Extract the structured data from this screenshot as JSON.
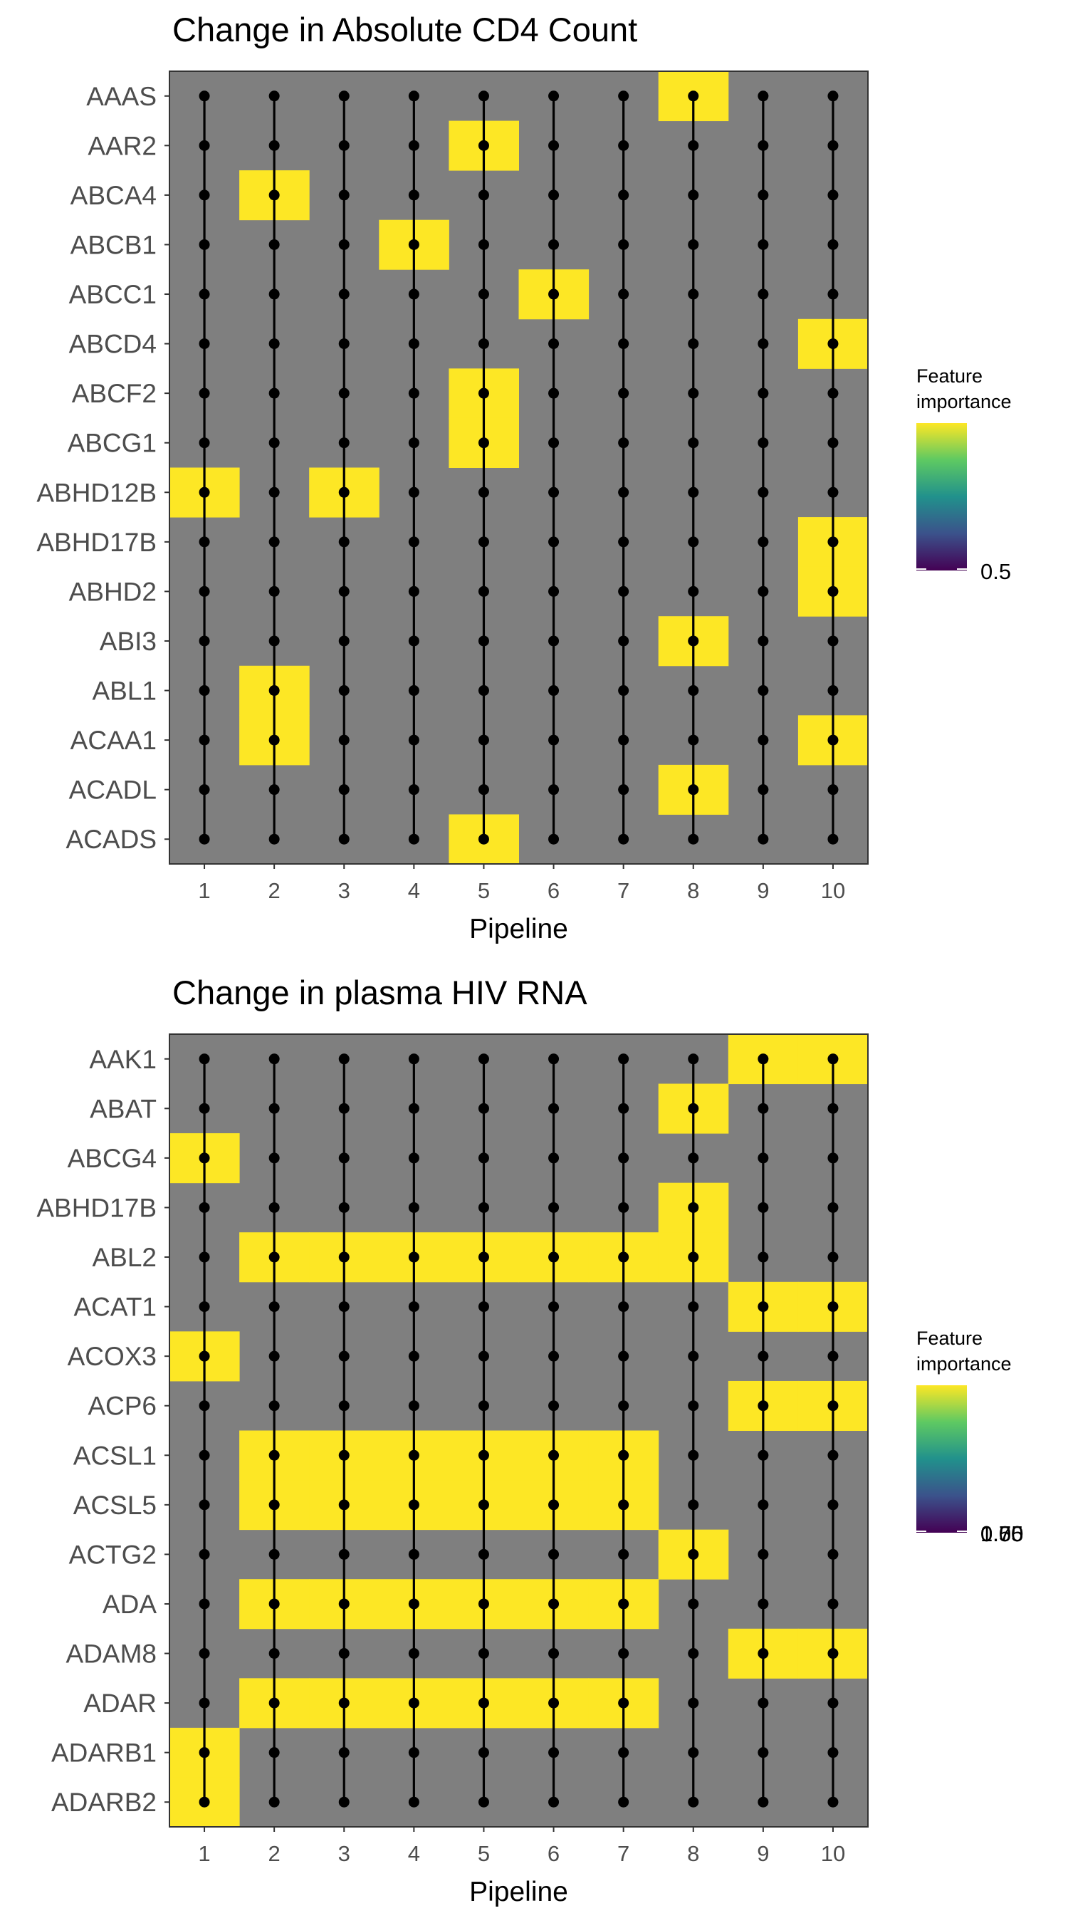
{
  "chart_data": [
    {
      "type": "heatmap",
      "title": "Change in Absolute CD4 Count",
      "xlabel": "Pipeline",
      "x": [
        "1",
        "2",
        "3",
        "4",
        "5",
        "6",
        "7",
        "8",
        "9",
        "10"
      ],
      "y": [
        "AAAS",
        "AAR2",
        "ABCA4",
        "ABCB1",
        "ABCC1",
        "ABCD4",
        "ABCF2",
        "ABCG1",
        "ABHD12B",
        "ABHD17B",
        "ABHD2",
        "ABI3",
        "ABL1",
        "ACAA1",
        "ACADL",
        "ACADS"
      ],
      "highlighted_cells": [
        [
          "AAAS",
          "8"
        ],
        [
          "AAR2",
          "5"
        ],
        [
          "ABCA4",
          "2"
        ],
        [
          "ABCB1",
          "4"
        ],
        [
          "ABCC1",
          "6"
        ],
        [
          "ABCD4",
          "10"
        ],
        [
          "ABCF2",
          "5"
        ],
        [
          "ABCG1",
          "5"
        ],
        [
          "ABHD12B",
          "1"
        ],
        [
          "ABHD12B",
          "3"
        ],
        [
          "ABHD17B",
          "10"
        ],
        [
          "ABHD2",
          "10"
        ],
        [
          "ABI3",
          "8"
        ],
        [
          "ABL1",
          "2"
        ],
        [
          "ACAA1",
          "2"
        ],
        [
          "ACAA1",
          "10"
        ],
        [
          "ACADL",
          "8"
        ],
        [
          "ACADS",
          "5"
        ]
      ],
      "highlight_color": "#fde725",
      "background_color": "#7f7f7f",
      "legend": {
        "title": "Feature importance",
        "title_lines": [
          "Feature",
          "importance"
        ],
        "tick_labels": [
          "0.5"
        ],
        "colors": [
          "#440154",
          "#3b528b",
          "#21918c",
          "#5ec962",
          "#fde725"
        ],
        "placement": "right"
      }
    },
    {
      "type": "heatmap",
      "title": "Change in plasma HIV RNA",
      "xlabel": "Pipeline",
      "x": [
        "1",
        "2",
        "3",
        "4",
        "5",
        "6",
        "7",
        "8",
        "9",
        "10"
      ],
      "y": [
        "AAK1",
        "ABAT",
        "ABCG4",
        "ABHD17B",
        "ABL2",
        "ACAT1",
        "ACOX3",
        "ACP6",
        "ACSL1",
        "ACSL5",
        "ACTG2",
        "ADA",
        "ADAM8",
        "ADAR",
        "ADARB1",
        "ADARB2"
      ],
      "highlighted_cells": [
        [
          "AAK1",
          "9"
        ],
        [
          "AAK1",
          "10"
        ],
        [
          "ABAT",
          "8"
        ],
        [
          "ABCG4",
          "1"
        ],
        [
          "ABHD17B",
          "8"
        ],
        [
          "ABL2",
          "2"
        ],
        [
          "ABL2",
          "3"
        ],
        [
          "ABL2",
          "4"
        ],
        [
          "ABL2",
          "5"
        ],
        [
          "ABL2",
          "6"
        ],
        [
          "ABL2",
          "7"
        ],
        [
          "ABL2",
          "8"
        ],
        [
          "ACAT1",
          "9"
        ],
        [
          "ACAT1",
          "10"
        ],
        [
          "ACOX3",
          "1"
        ],
        [
          "ACP6",
          "9"
        ],
        [
          "ACP6",
          "10"
        ],
        [
          "ACSL1",
          "2"
        ],
        [
          "ACSL1",
          "3"
        ],
        [
          "ACSL1",
          "4"
        ],
        [
          "ACSL1",
          "5"
        ],
        [
          "ACSL1",
          "6"
        ],
        [
          "ACSL1",
          "7"
        ],
        [
          "ACSL5",
          "2"
        ],
        [
          "ACSL5",
          "3"
        ],
        [
          "ACSL5",
          "4"
        ],
        [
          "ACSL5",
          "5"
        ],
        [
          "ACSL5",
          "6"
        ],
        [
          "ACSL5",
          "7"
        ],
        [
          "ACTG2",
          "8"
        ],
        [
          "ADA",
          "2"
        ],
        [
          "ADA",
          "3"
        ],
        [
          "ADA",
          "4"
        ],
        [
          "ADA",
          "5"
        ],
        [
          "ADA",
          "6"
        ],
        [
          "ADA",
          "7"
        ],
        [
          "ADAM8",
          "9"
        ],
        [
          "ADAM8",
          "10"
        ],
        [
          "ADAR",
          "2"
        ],
        [
          "ADAR",
          "3"
        ],
        [
          "ADAR",
          "4"
        ],
        [
          "ADAR",
          "5"
        ],
        [
          "ADAR",
          "6"
        ],
        [
          "ADAR",
          "7"
        ],
        [
          "ADARB1",
          "1"
        ],
        [
          "ADARB2",
          "1"
        ]
      ],
      "highlight_color": "#fde725",
      "background_color": "#7f7f7f",
      "legend": {
        "title": "Feature importance",
        "title_lines": [
          "Feature",
          "importance"
        ],
        "tick_labels": [
          "0.50",
          "0.75",
          "1.00"
        ],
        "colors": [
          "#440154",
          "#3b528b",
          "#21918c",
          "#5ec962",
          "#fde725"
        ],
        "placement": "right"
      }
    }
  ]
}
